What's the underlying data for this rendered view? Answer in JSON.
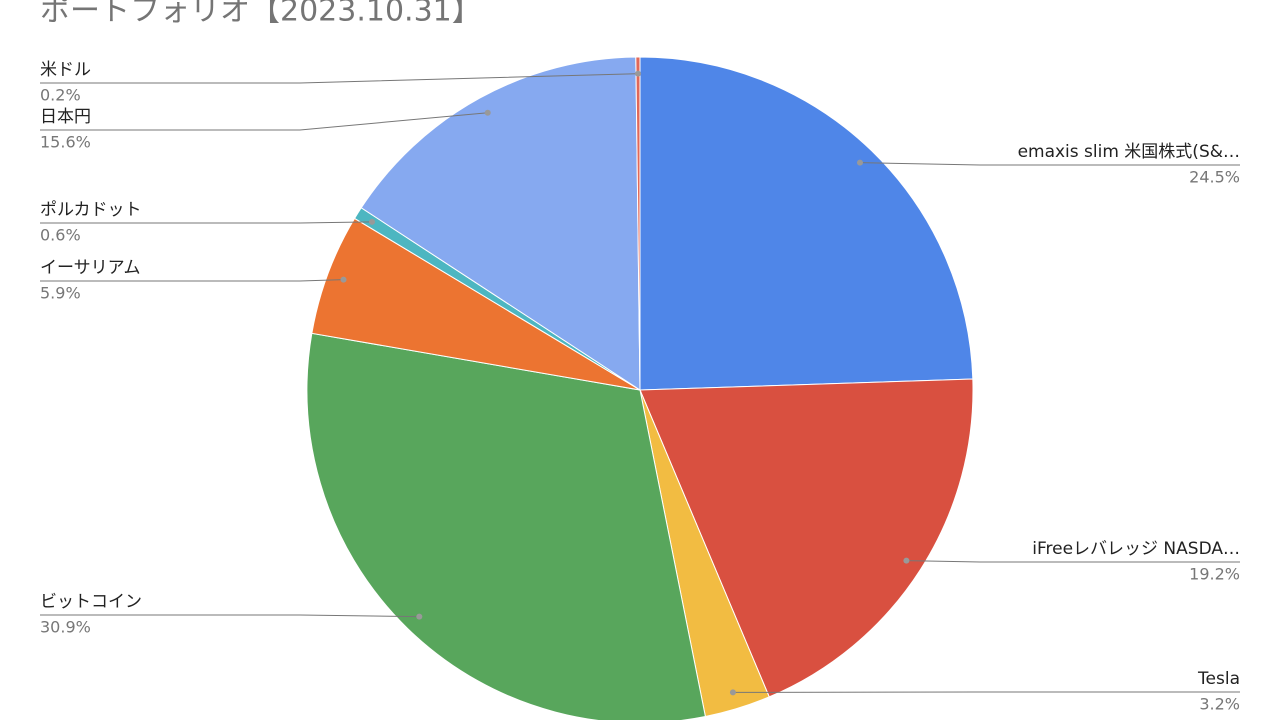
{
  "chart_data": {
    "type": "pie",
    "title": "ポートフォリオ【2023.10.31】",
    "categories": [
      "emaxis slim 米国株式(S&…",
      "iFreeレバレッジ NASDA…",
      "Tesla",
      "ビットコイン",
      "イーサリアム",
      "ポルカドット",
      "日本円",
      "米ドル"
    ],
    "values": [
      24.5,
      19.2,
      3.2,
      30.9,
      5.9,
      0.6,
      15.6,
      0.2
    ],
    "value_labels": [
      "24.5%",
      "19.2%",
      "3.2%",
      "30.9%",
      "5.9%",
      "0.6%",
      "15.6%",
      "0.2%"
    ],
    "colors": [
      "#4f86e8",
      "#d95040",
      "#f2bc42",
      "#58a65c",
      "#ec7431",
      "#4db6c1",
      "#86a9f0",
      "#e0685a"
    ]
  }
}
